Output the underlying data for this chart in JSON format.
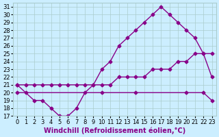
{
  "xlabel": "Windchill (Refroidissement éolien,°C)",
  "ylabel": "",
  "xlim": [
    0,
    23
  ],
  "ylim": [
    17,
    31
  ],
  "xticks": [
    0,
    1,
    2,
    3,
    4,
    5,
    6,
    7,
    8,
    9,
    10,
    11,
    12,
    13,
    14,
    15,
    16,
    17,
    18,
    19,
    20,
    21,
    22,
    23
  ],
  "yticks": [
    17,
    18,
    19,
    20,
    21,
    22,
    23,
    24,
    25,
    26,
    27,
    28,
    29,
    30,
    31
  ],
  "bg_color": "#cceeff",
  "line_color": "#880088",
  "grid_color": "#aacccc",
  "line1_x": [
    0,
    1,
    2,
    3,
    4,
    5,
    6,
    7,
    8,
    9,
    10,
    11,
    12,
    13,
    14,
    15,
    16,
    17,
    18,
    19,
    20,
    21,
    22,
    23
  ],
  "line1_y": [
    21,
    20,
    19,
    19,
    18,
    17,
    17,
    18,
    20,
    21,
    23,
    24,
    26,
    27,
    28,
    29,
    30,
    31,
    30,
    29,
    28,
    27,
    25,
    22
  ],
  "line2_x": [
    0,
    1,
    2,
    3,
    4,
    5,
    6,
    7,
    8,
    9,
    10,
    11,
    12,
    13,
    14,
    15,
    16,
    17,
    18,
    19,
    20,
    21,
    22,
    23
  ],
  "line2_y": [
    21,
    21,
    21,
    21,
    21,
    21,
    21,
    21,
    21,
    21,
    21,
    21,
    22,
    22,
    22,
    22,
    23,
    23,
    23,
    24,
    24,
    25,
    25,
    25
  ],
  "line3_x": [
    0,
    10,
    14,
    20,
    22,
    23
  ],
  "line3_y": [
    20,
    20,
    20,
    20,
    20,
    19
  ],
  "font_size_xlabel": 7,
  "font_size_ytick": 6,
  "font_size_xtick": 6
}
